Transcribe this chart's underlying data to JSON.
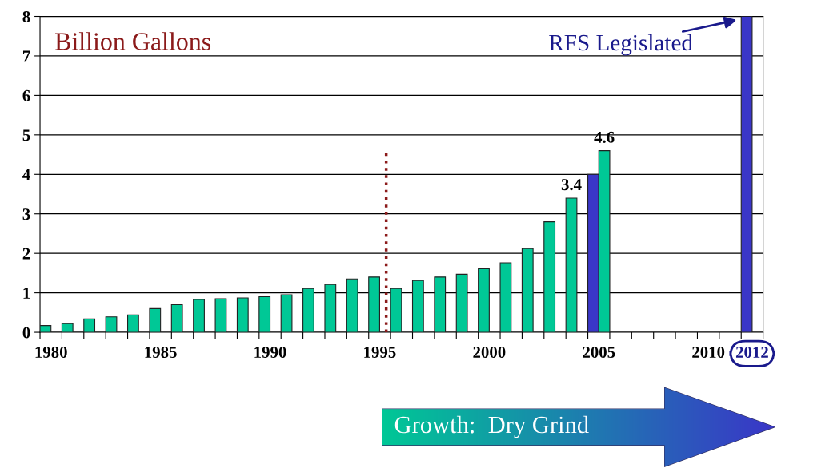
{
  "chart_data": {
    "type": "bar",
    "categories": [
      "1980",
      null,
      null,
      null,
      null,
      "1985",
      null,
      null,
      null,
      null,
      "1990",
      null,
      null,
      null,
      null,
      "1995",
      null,
      null,
      null,
      null,
      "2000",
      null,
      null,
      null,
      null,
      "2005",
      null,
      null,
      null,
      null,
      "2010",
      null,
      "2012"
    ],
    "series": [
      {
        "color": "#00c896",
        "values": [
          0.17,
          0.22,
          0.34,
          0.39,
          0.44,
          0.6,
          0.7,
          0.83,
          0.85,
          0.87,
          0.9,
          0.95,
          1.11,
          1.21,
          1.35,
          1.4,
          1.11,
          1.31,
          1.4,
          1.47,
          1.61,
          1.76,
          2.12,
          2.8,
          3.4,
          null,
          null,
          null,
          null,
          null,
          null,
          null,
          null
        ],
        "value_labels": [
          null,
          null,
          null,
          null,
          null,
          null,
          null,
          null,
          null,
          null,
          null,
          null,
          null,
          null,
          null,
          null,
          null,
          null,
          null,
          null,
          null,
          null,
          null,
          null,
          "3.4",
          null,
          null,
          null,
          null,
          null,
          null,
          null,
          null
        ]
      },
      {
        "color": "#3a36c8",
        "values": [
          null,
          null,
          null,
          null,
          null,
          null,
          null,
          null,
          null,
          null,
          null,
          null,
          null,
          null,
          null,
          null,
          null,
          null,
          null,
          null,
          null,
          null,
          null,
          null,
          null,
          4.0,
          null,
          null,
          null,
          null,
          null,
          null,
          8
        ]
      },
      {
        "color": "#00c896",
        "values": [
          null,
          null,
          null,
          null,
          null,
          null,
          null,
          null,
          null,
          null,
          null,
          null,
          null,
          null,
          null,
          null,
          null,
          null,
          null,
          null,
          null,
          null,
          null,
          null,
          null,
          4.6,
          null,
          null,
          null,
          null,
          null,
          null,
          null
        ],
        "value_labels": [
          null,
          null,
          null,
          null,
          null,
          null,
          null,
          null,
          null,
          null,
          null,
          null,
          null,
          null,
          null,
          null,
          null,
          null,
          null,
          null,
          null,
          null,
          null,
          null,
          null,
          "4.6",
          null,
          null,
          null,
          null,
          null,
          null,
          null
        ]
      }
    ],
    "ylim": [
      0,
      8
    ],
    "yticks": [
      0,
      1,
      2,
      3,
      4,
      5,
      6,
      7,
      8
    ],
    "grid": "y",
    "legend": false,
    "ref_lines": [
      {
        "axis": "x",
        "value": "1995",
        "color": "#8b1a1a",
        "line_style": "dotted"
      }
    ],
    "annotations": [
      "Billion Gallons",
      {
        "text": "RFS Legislated",
        "x": "2012",
        "y": 8
      },
      "Growth:  Dry Grind"
    ]
  }
}
